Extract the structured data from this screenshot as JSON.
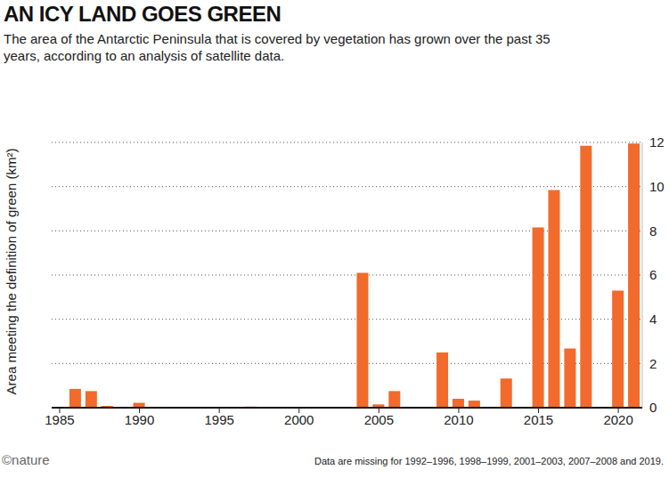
{
  "chart_data": {
    "type": "bar",
    "title": "AN ICY LAND GOES GREEN",
    "subtitle": "The area of the Antarctic Peninsula that is covered by vegetation has grown over the past 35 years, according to an analysis of satellite data.",
    "y_label": "Area meeting the definition of green (km²)",
    "note": "Data are missing for 1992–1996, 1998–1999, 2001–2003, 2007–2008 and 2019.",
    "credit": "©nature",
    "x": [
      1985,
      1986,
      1987,
      1988,
      1989,
      1990,
      1991,
      1997,
      2000,
      2004,
      2005,
      2006,
      2009,
      2010,
      2011,
      2012,
      2013,
      2014,
      2015,
      2016,
      2017,
      2018,
      2020,
      2021
    ],
    "values": [
      0.02,
      0.85,
      0.75,
      0.08,
      0.02,
      0.22,
      0.01,
      0.05,
      0.02,
      6.1,
      0.15,
      0.75,
      2.5,
      0.4,
      0.32,
      0.03,
      1.32,
      0.02,
      8.15,
      9.85,
      2.68,
      11.85,
      5.3,
      11.95
    ],
    "color": "#f26a2c",
    "xlim": [
      1984.5,
      2021.5
    ],
    "xticks": [
      1985,
      1990,
      1995,
      2000,
      2005,
      2010,
      2015,
      2020
    ],
    "ylim": [
      0,
      12
    ],
    "yticks": [
      0,
      2,
      4,
      6,
      8,
      10,
      12
    ],
    "grid": true
  }
}
